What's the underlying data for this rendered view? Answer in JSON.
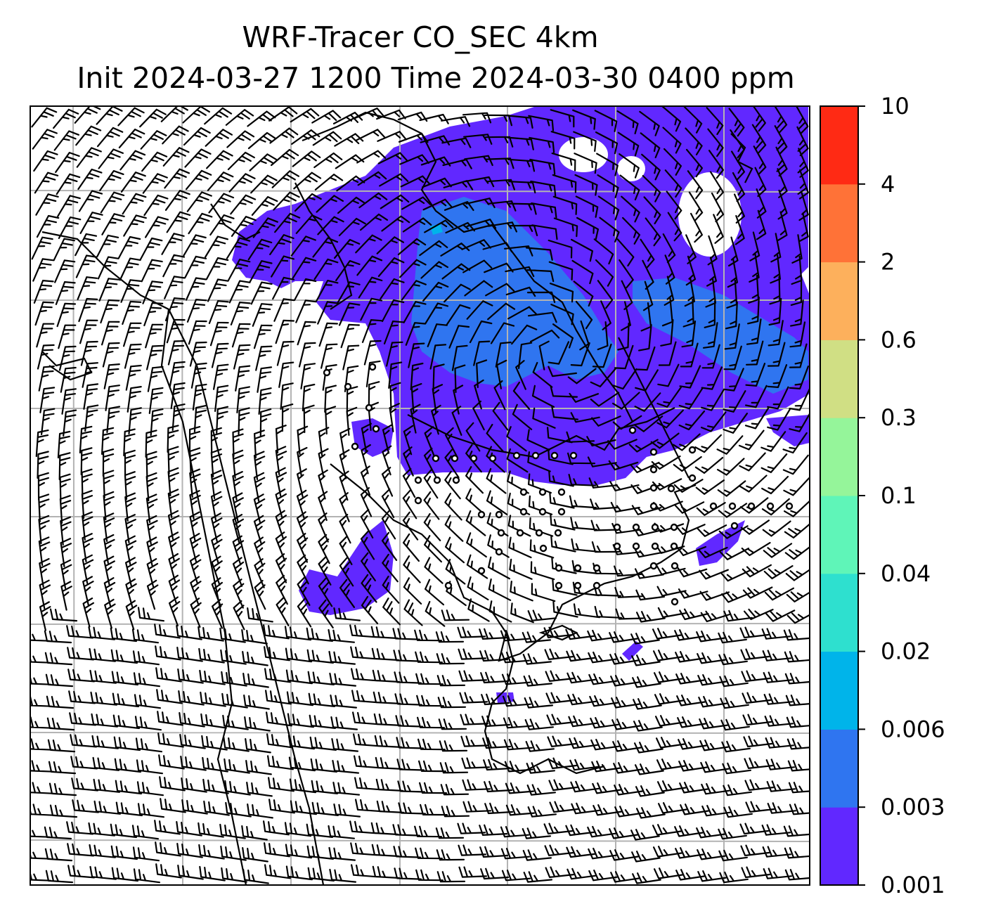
{
  "title": {
    "line1": "WRF-Tracer CO_SEC 4km",
    "line2": "Init 2024-03-27 1200 Time 2024-03-30 0400 ppm"
  },
  "colorbar": {
    "levels": [
      "0.001",
      "0.003",
      "0.006",
      "0.02",
      "0.04",
      "0.1",
      "0.3",
      "0.6",
      "2",
      "4",
      "10"
    ],
    "colors": [
      "#6128ff",
      "#2f75f0",
      "#00b4ea",
      "#2ee0cf",
      "#5ff5b8",
      "#95f59a",
      "#d0df84",
      "#fdb05c",
      "#ff7237",
      "#ff2a14"
    ]
  },
  "map": {
    "field": "CO_SEC tracer concentration",
    "overlay": "wind barbs",
    "calm_marker": "circle",
    "coastline_color": "#000000",
    "gridline_color": "#b3b3b3"
  }
}
